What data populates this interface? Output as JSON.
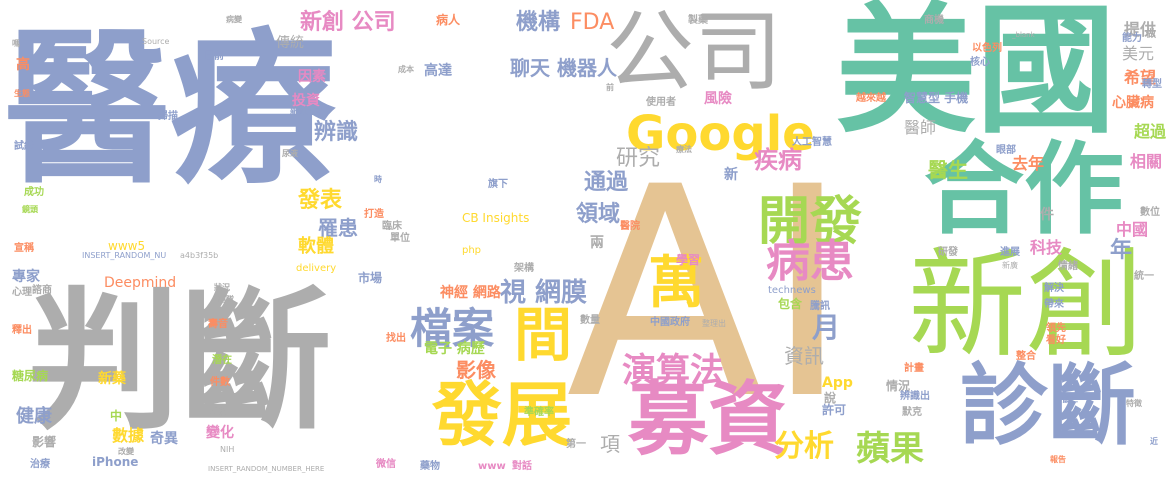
{
  "words": [
    {
      "text": "醫療",
      "color": "#8e9fcb"
    },
    {
      "text": "判斷",
      "color": "#adadad"
    },
    {
      "text": "AI",
      "color": "#e5c493"
    },
    {
      "text": "美國",
      "color": "#66c2a5"
    },
    {
      "text": "新創",
      "color": "#a6d853"
    },
    {
      "text": "公司",
      "color": "#adadad"
    },
    {
      "text": "合作",
      "color": "#66c2a5"
    },
    {
      "text": "診斷",
      "color": "#8e9fcb"
    },
    {
      "text": "募資",
      "color": "#e78ac3"
    },
    {
      "text": "發展",
      "color": "#ffd92f"
    },
    {
      "text": "Google",
      "color": "#ffd92f"
    },
    {
      "text": "開發",
      "color": "#a6d853"
    },
    {
      "text": "病患",
      "color": "#e78ac3"
    },
    {
      "text": "間",
      "color": "#ffd92f"
    },
    {
      "text": "萬",
      "color": "#ffd92f"
    },
    {
      "text": "檔案",
      "color": "#8e9fcb"
    },
    {
      "text": "演算法",
      "color": "#e78ac3"
    },
    {
      "text": "蘋果",
      "color": "#a6d853"
    },
    {
      "text": "分析",
      "color": "#ffd92f"
    },
    {
      "text": "視 網膜",
      "color": "#8e9fcb"
    },
    {
      "text": "新創 公司",
      "color": "#e78ac3"
    },
    {
      "text": "機構",
      "color": "#8e9fcb"
    },
    {
      "text": "FDA",
      "color": "#fc8d62"
    },
    {
      "text": "聊天 機器人",
      "color": "#8e9fcb"
    },
    {
      "text": "疾病",
      "color": "#e78ac3"
    },
    {
      "text": "研究",
      "color": "#adadad"
    },
    {
      "text": "通過",
      "color": "#8e9fcb"
    },
    {
      "text": "領域",
      "color": "#8e9fcb"
    },
    {
      "text": "辨識",
      "color": "#8e9fcb"
    },
    {
      "text": "發表",
      "color": "#ffd92f"
    },
    {
      "text": "罹患",
      "color": "#8e9fcb"
    },
    {
      "text": "軟體",
      "color": "#ffd92f"
    },
    {
      "text": "月",
      "color": "#8e9fcb"
    },
    {
      "text": "資訊",
      "color": "#adadad"
    },
    {
      "text": "影像",
      "color": "#fc8d62"
    },
    {
      "text": "電子 病歷",
      "color": "#a6d853"
    },
    {
      "text": "神經 網路",
      "color": "#fc8d62"
    },
    {
      "text": "醫生",
      "color": "#a6d853"
    },
    {
      "text": "醫師",
      "color": "#adadad"
    },
    {
      "text": "去年",
      "color": "#fc8d62"
    },
    {
      "text": "中國",
      "color": "#e78ac3"
    },
    {
      "text": "科技",
      "color": "#e78ac3"
    },
    {
      "text": "年",
      "color": "#8e9fcb"
    },
    {
      "text": "希望",
      "color": "#fc8d62"
    },
    {
      "text": "美元",
      "color": "#adadad"
    },
    {
      "text": "提供",
      "color": "#adadad"
    },
    {
      "text": "超過",
      "color": "#a6d853"
    },
    {
      "text": "相關",
      "color": "#e78ac3"
    },
    {
      "text": "心臟病",
      "color": "#fc8d62"
    },
    {
      "text": "智慧型 手機",
      "color": "#8e9fcb"
    },
    {
      "text": "健康",
      "color": "#8e9fcb"
    },
    {
      "text": "專家",
      "color": "#8e9fcb"
    },
    {
      "text": "數據",
      "color": "#ffd92f"
    },
    {
      "text": "奇異",
      "color": "#8e9fcb"
    },
    {
      "text": "變化",
      "color": "#e78ac3"
    },
    {
      "text": "App",
      "color": "#ffd92f"
    },
    {
      "text": "許可",
      "color": "#8e9fcb"
    },
    {
      "text": "Deepmind",
      "color": "#fc8d62"
    },
    {
      "text": "傳統",
      "color": "#adadad"
    },
    {
      "text": "因素",
      "color": "#e78ac3"
    },
    {
      "text": "投資",
      "color": "#e78ac3"
    },
    {
      "text": "高達",
      "color": "#8e9fcb"
    },
    {
      "text": "風險",
      "color": "#e78ac3"
    },
    {
      "text": "iPhone",
      "color": "#8e9fcb"
    },
    {
      "text": "項",
      "color": "#adadad"
    },
    {
      "text": "學習",
      "color": "#e78ac3"
    },
    {
      "text": "CB Insights",
      "color": "#ffd92f"
    },
    {
      "text": "www5",
      "color": "#ffd92f"
    },
    {
      "text": "糖尿病",
      "color": "#a6d853"
    },
    {
      "text": "新藥",
      "color": "#ffd92f"
    },
    {
      "text": "影響",
      "color": "#adadad"
    },
    {
      "text": "中",
      "color": "#a6d853"
    },
    {
      "text": "情況",
      "color": "#adadad"
    },
    {
      "text": "說",
      "color": "#adadad"
    },
    {
      "text": "件",
      "color": "#adadad"
    },
    {
      "text": "高",
      "color": "#fc8d62"
    },
    {
      "text": "病人",
      "color": "#fc8d62"
    },
    {
      "text": "人工智慧",
      "color": "#8e9fcb"
    },
    {
      "text": "整合",
      "color": "#fc8d62"
    },
    {
      "text": "宣稱",
      "color": "#fc8d62"
    },
    {
      "text": "成功",
      "color": "#a6d853"
    },
    {
      "text": "試紙",
      "color": "#8e9fcb"
    },
    {
      "text": "INSERT_RANDOM_NU",
      "color": "#8e9fcb"
    },
    {
      "text": "a4b3f35b",
      "color": "#adadad"
    },
    {
      "text": "INSERT_RANDOM_NUMBER_HERE",
      "color": "#adadad"
    },
    {
      "text": "NIH",
      "color": "#adadad"
    },
    {
      "text": "Source",
      "color": "#adadad"
    },
    {
      "text": "製藥",
      "color": "#adadad"
    },
    {
      "text": "商機",
      "color": "#adadad"
    },
    {
      "text": "_blank",
      "color": "#adadad"
    },
    {
      "text": "以色列",
      "color": "#fc8d62"
    },
    {
      "text": "核心",
      "color": "#8e9fcb"
    },
    {
      "text": "越來越",
      "color": "#fc8d62"
    },
    {
      "text": "中國政府",
      "color": "#8e9fcb"
    },
    {
      "text": "整理出",
      "color": "#adadad"
    },
    {
      "text": "technews",
      "color": "#8e9fcb"
    },
    {
      "text": "包含",
      "color": "#a6d853"
    },
    {
      "text": "騰訊",
      "color": "#8e9fcb"
    },
    {
      "text": "微信",
      "color": "#e78ac3"
    },
    {
      "text": "www",
      "color": "#e78ac3"
    },
    {
      "text": "對話",
      "color": "#e78ac3"
    },
    {
      "text": "藥物",
      "color": "#8e9fcb"
    },
    {
      "text": "第一",
      "color": "#adadad"
    },
    {
      "text": "delivery",
      "color": "#ffd92f"
    },
    {
      "text": "php",
      "color": "#ffd92f"
    },
    {
      "text": "市場",
      "color": "#8e9fcb"
    },
    {
      "text": "兩",
      "color": "#adadad"
    },
    {
      "text": "架構",
      "color": "#adadad"
    },
    {
      "text": "準確率",
      "color": "#a6d853"
    },
    {
      "text": "數量",
      "color": "#adadad"
    },
    {
      "text": "使用者",
      "color": "#adadad"
    },
    {
      "text": "療法",
      "color": "#adadad"
    },
    {
      "text": "旗下",
      "color": "#8e9fcb"
    },
    {
      "text": "打造",
      "color": "#fc8d62"
    },
    {
      "text": "臨床",
      "color": "#adadad"
    },
    {
      "text": "單位",
      "color": "#adadad"
    },
    {
      "text": "醫院",
      "color": "#fc8d62"
    },
    {
      "text": "找出",
      "color": "#fc8d62"
    },
    {
      "text": "轉型",
      "color": "#8e9fcb"
    },
    {
      "text": "能力",
      "color": "#8e9fcb"
    },
    {
      "text": "做",
      "color": "#adadad"
    },
    {
      "text": "眼部",
      "color": "#8e9fcb"
    },
    {
      "text": "數位",
      "color": "#adadad"
    },
    {
      "text": "統一",
      "color": "#adadad"
    },
    {
      "text": "進展",
      "color": "#8e9fcb"
    },
    {
      "text": "新廣",
      "color": "#adadad"
    },
    {
      "text": "研發",
      "color": "#adadad"
    },
    {
      "text": "情緒",
      "color": "#adadad"
    },
    {
      "text": "解決",
      "color": "#8e9fcb"
    },
    {
      "text": "帶來",
      "color": "#8e9fcb"
    },
    {
      "text": "領先",
      "color": "#fc8d62"
    },
    {
      "text": "看好",
      "color": "#fc8d62"
    },
    {
      "text": "計畫",
      "color": "#fc8d62"
    },
    {
      "text": "辨識出",
      "color": "#8e9fcb"
    },
    {
      "text": "默克",
      "color": "#adadad"
    },
    {
      "text": "特徵",
      "color": "#adadad"
    },
    {
      "text": "鼠仁",
      "color": "#8e9fcb"
    },
    {
      "text": "近",
      "color": "#8e9fcb"
    },
    {
      "text": "報告",
      "color": "#fc8d62"
    },
    {
      "text": "壽音",
      "color": "#fc8d62"
    },
    {
      "text": "潛在",
      "color": "#a6d853"
    },
    {
      "text": "件數",
      "color": "#fc8d62"
    },
    {
      "text": "階段",
      "color": "#adadad"
    },
    {
      "text": "改變",
      "color": "#adadad"
    },
    {
      "text": "治療",
      "color": "#8e9fcb"
    },
    {
      "text": "日前",
      "color": "#8e9fcb"
    },
    {
      "text": "病變",
      "color": "#adadad"
    },
    {
      "text": "掃描",
      "color": "#8e9fcb"
    },
    {
      "text": "嗎",
      "color": "#adadad"
    },
    {
      "text": "心理",
      "color": "#adadad"
    },
    {
      "text": "諮商",
      "color": "#adadad"
    },
    {
      "text": "釋出",
      "color": "#fc8d62"
    },
    {
      "text": "鏡頭",
      "color": "#a6d853"
    },
    {
      "text": "生態",
      "color": "#fc8d62"
    },
    {
      "text": "狀況",
      "color": "#adadad"
    },
    {
      "text": "團隊",
      "color": "#adadad"
    },
    {
      "text": "尿液",
      "color": "#adadad"
    },
    {
      "text": "成本",
      "color": "#adadad"
    },
    {
      "text": "新創公司",
      "color": "#8e9fcb"
    },
    {
      "text": "前",
      "color": "#adadad"
    },
    {
      "text": "時",
      "color": "#8e9fcb"
    },
    {
      "text": "新",
      "color": "#8e9fcb"
    }
  ]
}
